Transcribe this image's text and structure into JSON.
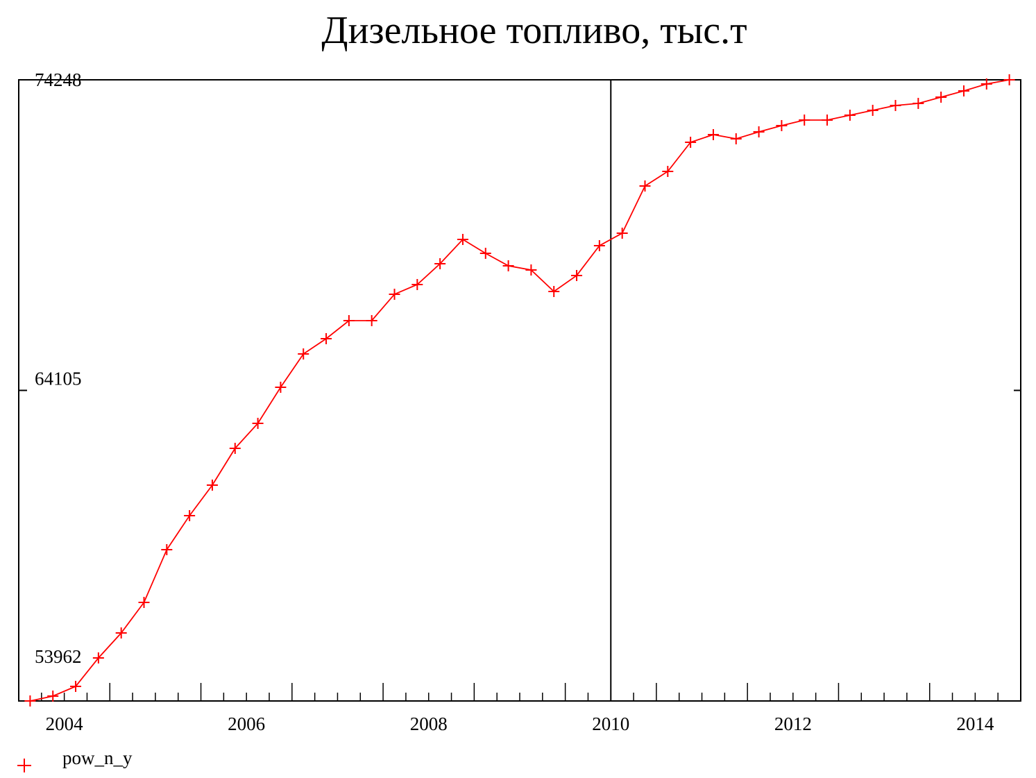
{
  "chart_data": {
    "type": "line",
    "title": "Дизельное топливо, тыс.т",
    "x": [
      2003.625,
      2003.875,
      2004.125,
      2004.375,
      2004.625,
      2004.875,
      2005.125,
      2005.375,
      2005.625,
      2005.875,
      2006.125,
      2006.375,
      2006.625,
      2006.875,
      2007.125,
      2007.375,
      2007.625,
      2007.875,
      2008.125,
      2008.375,
      2008.625,
      2008.875,
      2009.125,
      2009.375,
      2009.625,
      2009.875,
      2010.125,
      2010.375,
      2010.625,
      2010.875,
      2011.125,
      2011.375,
      2011.625,
      2011.875,
      2012.125,
      2012.375,
      2012.625,
      2012.875,
      2013.125,
      2013.375,
      2013.625,
      2013.875,
      2014.125,
      2014.375
    ],
    "series": [
      {
        "name": "pow_n_y",
        "color": "#ff0000",
        "values": [
          53962,
          54121,
          54438,
          55367,
          56183,
          57181,
          58903,
          60014,
          61011,
          62213,
          63029,
          64207,
          65295,
          65794,
          66383,
          66383,
          67245,
          67562,
          68242,
          69035,
          68582,
          68174,
          68038,
          67335,
          67857,
          68831,
          69239,
          70780,
          71256,
          72208,
          72458,
          72322,
          72548,
          72752,
          72934,
          72934,
          73092,
          73251,
          73410,
          73478,
          73682,
          73886,
          74112,
          74248
        ]
      }
    ],
    "xlim": [
      2003.5,
      2014.5
    ],
    "xticks": [
      2004,
      2006,
      2008,
      2010,
      2012,
      2014
    ],
    "ylim": [
      53962,
      74248
    ],
    "yticks": [
      53962,
      64105,
      74248
    ],
    "vertical_line_x": 2010,
    "legend": "bottom-left"
  }
}
